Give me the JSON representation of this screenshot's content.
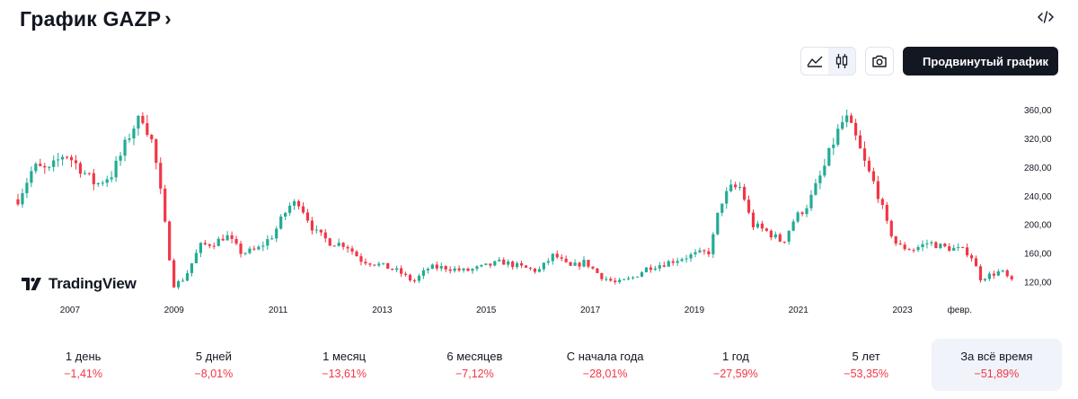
{
  "header": {
    "title": "График GAZP",
    "chevron": "›",
    "embed_icon": "code-icon"
  },
  "toolbar": {
    "line_icon": "area-chart-icon",
    "candle_icon": "candlestick-icon",
    "camera_icon": "camera-icon",
    "advanced_icon": "fullscreen-icon",
    "advanced_label": "Продвинутый график"
  },
  "logo": {
    "text": "TradingView"
  },
  "colors": {
    "up": "#22ab94",
    "down": "#f23645",
    "text": "#131722",
    "grid": "#e0e3eb"
  },
  "chart_data": {
    "type": "candlestick",
    "x_ticks": [
      "2007",
      "2009",
      "2011",
      "2013",
      "2015",
      "2017",
      "2019",
      "2021",
      "2023",
      "февр."
    ],
    "y_ticks": [
      "120,00",
      "160,00",
      "200,00",
      "240,00",
      "280,00",
      "320,00",
      "360,00"
    ],
    "ylim": [
      92,
      385
    ],
    "series": [
      {
        "x": 2006.0,
        "y": 235
      },
      {
        "x": 2006.3,
        "y": 280
      },
      {
        "x": 2006.6,
        "y": 275
      },
      {
        "x": 2006.9,
        "y": 300
      },
      {
        "x": 2007.2,
        "y": 278
      },
      {
        "x": 2007.5,
        "y": 255
      },
      {
        "x": 2007.8,
        "y": 270
      },
      {
        "x": 2008.0,
        "y": 300
      },
      {
        "x": 2008.2,
        "y": 335
      },
      {
        "x": 2008.4,
        "y": 350
      },
      {
        "x": 2008.6,
        "y": 310
      },
      {
        "x": 2008.75,
        "y": 240
      },
      {
        "x": 2008.9,
        "y": 160
      },
      {
        "x": 2009.0,
        "y": 115
      },
      {
        "x": 2009.2,
        "y": 125
      },
      {
        "x": 2009.5,
        "y": 170
      },
      {
        "x": 2009.8,
        "y": 175
      },
      {
        "x": 2010.0,
        "y": 185
      },
      {
        "x": 2010.3,
        "y": 160
      },
      {
        "x": 2010.6,
        "y": 165
      },
      {
        "x": 2010.9,
        "y": 185
      },
      {
        "x": 2011.2,
        "y": 225
      },
      {
        "x": 2011.4,
        "y": 232
      },
      {
        "x": 2011.7,
        "y": 190
      },
      {
        "x": 2012.0,
        "y": 175
      },
      {
        "x": 2012.3,
        "y": 172
      },
      {
        "x": 2012.6,
        "y": 150
      },
      {
        "x": 2012.9,
        "y": 145
      },
      {
        "x": 2013.3,
        "y": 135
      },
      {
        "x": 2013.6,
        "y": 120
      },
      {
        "x": 2013.9,
        "y": 140
      },
      {
        "x": 2014.2,
        "y": 140
      },
      {
        "x": 2014.6,
        "y": 135
      },
      {
        "x": 2015.0,
        "y": 142
      },
      {
        "x": 2015.3,
        "y": 148
      },
      {
        "x": 2015.7,
        "y": 140
      },
      {
        "x": 2016.0,
        "y": 135
      },
      {
        "x": 2016.3,
        "y": 158
      },
      {
        "x": 2016.6,
        "y": 140
      },
      {
        "x": 2016.9,
        "y": 148
      },
      {
        "x": 2017.2,
        "y": 128
      },
      {
        "x": 2017.5,
        "y": 118
      },
      {
        "x": 2017.8,
        "y": 125
      },
      {
        "x": 2018.1,
        "y": 140
      },
      {
        "x": 2018.4,
        "y": 145
      },
      {
        "x": 2018.7,
        "y": 152
      },
      {
        "x": 2019.0,
        "y": 158
      },
      {
        "x": 2019.3,
        "y": 162
      },
      {
        "x": 2019.5,
        "y": 230
      },
      {
        "x": 2019.7,
        "y": 250
      },
      {
        "x": 2019.9,
        "y": 252
      },
      {
        "x": 2020.1,
        "y": 200
      },
      {
        "x": 2020.4,
        "y": 190
      },
      {
        "x": 2020.7,
        "y": 175
      },
      {
        "x": 2020.9,
        "y": 205
      },
      {
        "x": 2021.2,
        "y": 230
      },
      {
        "x": 2021.5,
        "y": 280
      },
      {
        "x": 2021.7,
        "y": 320
      },
      {
        "x": 2021.9,
        "y": 350
      },
      {
        "x": 2022.1,
        "y": 320
      },
      {
        "x": 2022.3,
        "y": 280
      },
      {
        "x": 2022.5,
        "y": 250
      },
      {
        "x": 2022.7,
        "y": 200
      },
      {
        "x": 2022.9,
        "y": 170
      },
      {
        "x": 2023.2,
        "y": 165
      },
      {
        "x": 2023.5,
        "y": 175
      },
      {
        "x": 2023.8,
        "y": 168
      },
      {
        "x": 2024.1,
        "y": 165
      },
      {
        "x": 2024.3,
        "y": 160
      },
      {
        "x": 2024.5,
        "y": 125
      },
      {
        "x": 2024.7,
        "y": 130
      },
      {
        "x": 2024.9,
        "y": 135
      },
      {
        "x": 2025.1,
        "y": 120
      }
    ]
  },
  "periods": [
    {
      "label": "1 день",
      "value": "−1,41%"
    },
    {
      "label": "5 дней",
      "value": "−8,01%"
    },
    {
      "label": "1 месяц",
      "value": "−13,61%"
    },
    {
      "label": "6 месяцев",
      "value": "−7,12%"
    },
    {
      "label": "С начала года",
      "value": "−28,01%"
    },
    {
      "label": "1 год",
      "value": "−27,59%"
    },
    {
      "label": "5 лет",
      "value": "−53,35%"
    },
    {
      "label": "За всё время",
      "value": "−51,89%"
    }
  ]
}
